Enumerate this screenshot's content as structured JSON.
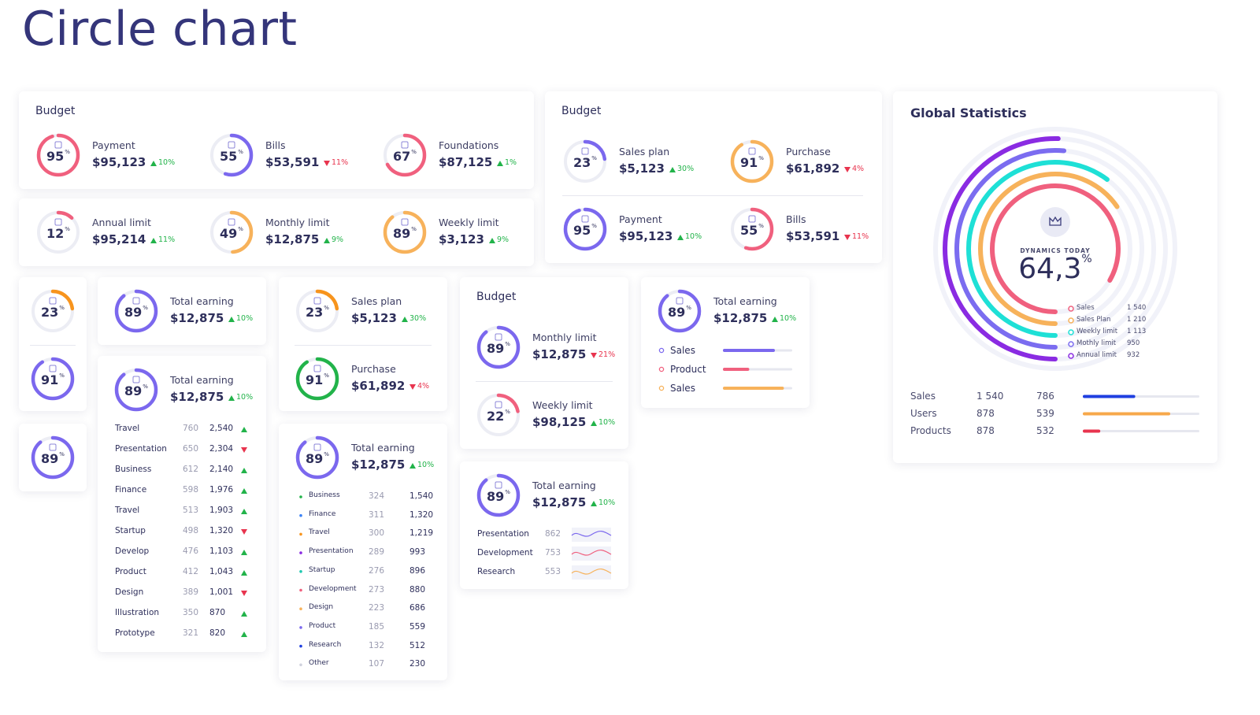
{
  "page_title": "Circle chart",
  "cards": [
    {
      "kind": "row",
      "title": "Budget",
      "items": [
        {
          "label": "Payment",
          "value": 95,
          "unit": "%",
          "amount": "$95,123",
          "change": "10%",
          "trend": "up",
          "color": "#f0607e"
        },
        {
          "label": "Bills",
          "value": 55,
          "unit": "%",
          "amount": "$53,591",
          "change": "11%",
          "trend": "down",
          "color": "#7b68ee"
        },
        {
          "label": "Foundations",
          "value": 67,
          "unit": "%",
          "amount": "$87,125",
          "change": "1%",
          "trend": "up",
          "color": "#f0607e"
        }
      ]
    },
    {
      "kind": "row",
      "items": [
        {
          "label": "Annual limit",
          "value": 12,
          "unit": "%",
          "amount": "$95,214",
          "change": "11%",
          "trend": "up",
          "color": "#f0607e"
        },
        {
          "label": "Monthly limit",
          "value": 49,
          "unit": "%",
          "amount": "$12,875",
          "change": "9%",
          "trend": "up",
          "color": "#f7b25b"
        },
        {
          "label": "Weekly limit",
          "value": 89,
          "unit": "%",
          "amount": "$3,123",
          "change": "9%",
          "trend": "up",
          "color": "#f7b25b"
        }
      ]
    },
    {
      "kind": "grid",
      "title": "Budget",
      "items": [
        {
          "label": "Sales plan",
          "value": 23,
          "unit": "%",
          "amount": "$5,123",
          "change": "30%",
          "trend": "up",
          "color": "#7b68ee"
        },
        {
          "label": "Purchase",
          "value": 91,
          "unit": "%",
          "amount": "$61,892",
          "change": "4%",
          "trend": "down",
          "color": "#f7b25b"
        },
        {
          "label": "Payment",
          "value": 95,
          "unit": "%",
          "amount": "$95,123",
          "change": "10%",
          "trend": "up",
          "color": "#7b68ee"
        },
        {
          "label": "Bills",
          "value": 55,
          "unit": "%",
          "amount": "$53,591",
          "change": "11%",
          "trend": "down",
          "color": "#f0607e"
        }
      ]
    },
    {
      "kind": "global",
      "title": "Global Statistics",
      "dynamics": {
        "title": "DYNAMICS TODAY",
        "value": "64,3",
        "unit": "%"
      },
      "legend": [
        {
          "name": "Sales",
          "value": 1540,
          "label": "1 540",
          "color": "#f0607e"
        },
        {
          "name": "Sales Plan",
          "value": 1210,
          "label": "1 210",
          "color": "#f7b25b"
        },
        {
          "name": "Weekly limit",
          "value": 1113,
          "label": "1 113",
          "color": "#1ee0d6"
        },
        {
          "name": "Mothly limit",
          "value": 950,
          "label": "950",
          "color": "#7b6cf0"
        },
        {
          "name": "Annual limit",
          "value": 932,
          "label": "932",
          "color": "#8a2be2"
        }
      ],
      "table": [
        {
          "name": "Sales",
          "a": "1 540",
          "b": "786",
          "bar": 45,
          "color": "#1f3fe0"
        },
        {
          "name": "Users",
          "a": "878",
          "b": "539",
          "bar": 75,
          "color": "#f7a84b"
        },
        {
          "name": "Products",
          "a": "878",
          "b": "532",
          "bar": 15,
          "color": "#e8344e"
        }
      ]
    },
    {
      "kind": "stack",
      "items": [
        {
          "value": 23,
          "unit": "%",
          "color": "#f7941d"
        },
        {
          "value": 91,
          "unit": "%",
          "color": "#7b68ee"
        }
      ]
    },
    {
      "kind": "stack",
      "items": [
        {
          "value": 89,
          "unit": "%",
          "color": "#7b68ee"
        }
      ]
    },
    {
      "kind": "stack",
      "items": [
        {
          "label": "Total earning",
          "value": 89,
          "unit": "%",
          "amount": "$12,875",
          "change": "10%",
          "trend": "up",
          "color": "#7b68ee"
        }
      ]
    },
    {
      "kind": "stack",
      "items": [
        {
          "label": "Total earning",
          "value": 89,
          "unit": "%",
          "amount": "$12,875",
          "change": "10%",
          "trend": "up",
          "color": "#7b68ee"
        }
      ],
      "rows_kind": "trend",
      "rows": [
        {
          "name": "Travel",
          "num": "760",
          "total": "2,540",
          "trend": "up"
        },
        {
          "name": "Presentation",
          "num": "650",
          "total": "2,304",
          "trend": "down"
        },
        {
          "name": "Business",
          "num": "612",
          "total": "2,140",
          "trend": "up"
        },
        {
          "name": "Finance",
          "num": "598",
          "total": "1,976",
          "trend": "up"
        },
        {
          "name": "Travel",
          "num": "513",
          "total": "1,903",
          "trend": "up"
        },
        {
          "name": "Startup",
          "num": "498",
          "total": "1,320",
          "trend": "down"
        },
        {
          "name": "Develop",
          "num": "476",
          "total": "1,103",
          "trend": "up"
        },
        {
          "name": "Product",
          "num": "412",
          "total": "1,043",
          "trend": "up"
        },
        {
          "name": "Design",
          "num": "389",
          "total": "1,001",
          "trend": "down"
        },
        {
          "name": "Illustration",
          "num": "350",
          "total": "870",
          "trend": "up"
        },
        {
          "name": "Prototype",
          "num": "321",
          "total": "820",
          "trend": "up"
        }
      ]
    },
    {
      "kind": "stack",
      "items": [
        {
          "label": "Sales plan",
          "value": 23,
          "unit": "%",
          "amount": "$5,123",
          "change": "30%",
          "trend": "up",
          "color": "#f7941d"
        },
        {
          "label": "Purchase",
          "value": 91,
          "unit": "%",
          "amount": "$61,892",
          "change": "4%",
          "trend": "down",
          "color": "#22b34a"
        }
      ]
    },
    {
      "kind": "stack",
      "items": [
        {
          "label": "Total earning",
          "value": 89,
          "unit": "%",
          "amount": "$12,875",
          "change": "10%",
          "trend": "up",
          "color": "#7b68ee"
        }
      ],
      "rows_kind": "dots",
      "rows": [
        {
          "name": "Business",
          "num": "324",
          "total": "1,540",
          "color": "#22b34a"
        },
        {
          "name": "Finance",
          "num": "311",
          "total": "1,320",
          "color": "#3b82f6"
        },
        {
          "name": "Travel",
          "num": "300",
          "total": "1,219",
          "color": "#f7941d"
        },
        {
          "name": "Presentation",
          "num": "289",
          "total": "993",
          "color": "#8a2be2"
        },
        {
          "name": "Startup",
          "num": "276",
          "total": "896",
          "color": "#1ec8b0"
        },
        {
          "name": "Development",
          "num": "273",
          "total": "880",
          "color": "#f0607e"
        },
        {
          "name": "Design",
          "num": "223",
          "total": "686",
          "color": "#f7b25b"
        },
        {
          "name": "Product",
          "num": "185",
          "total": "559",
          "color": "#7b68ee"
        },
        {
          "name": "Research",
          "num": "132",
          "total": "512",
          "color": "#1f3fe0"
        },
        {
          "name": "Other",
          "num": "107",
          "total": "230",
          "color": "#d0d2de"
        }
      ]
    },
    {
      "kind": "stack",
      "title": "Budget",
      "items": [
        {
          "label": "Monthly limit",
          "value": 89,
          "unit": "%",
          "amount": "$12,875",
          "change": "21%",
          "trend": "down",
          "color": "#7b68ee"
        },
        {
          "label": "Weekly limit",
          "value": 22,
          "unit": "%",
          "amount": "$98,125",
          "change": "10%",
          "trend": "up",
          "color": "#f0607e"
        }
      ]
    },
    {
      "kind": "stack",
      "items": [
        {
          "label": "Total earning",
          "value": 89,
          "unit": "%",
          "amount": "$12,875",
          "change": "10%",
          "trend": "up",
          "color": "#7b68ee"
        }
      ],
      "rows_kind": "spark",
      "rows": [
        {
          "name": "Presentation",
          "num": "862",
          "color": "#7b68ee"
        },
        {
          "name": "Development",
          "num": "753",
          "color": "#f0607e"
        },
        {
          "name": "Research",
          "num": "553",
          "color": "#f7b25b"
        }
      ]
    },
    {
      "kind": "stack",
      "items": [
        {
          "label": "Total earning",
          "value": 89,
          "unit": "%",
          "amount": "$12,875",
          "change": "10%",
          "trend": "up",
          "color": "#7b68ee"
        }
      ],
      "rows_kind": "bars",
      "rows": [
        {
          "name": "Sales",
          "bar": 75,
          "color": "#7b68ee"
        },
        {
          "name": "Product",
          "bar": 38,
          "color": "#f0607e"
        },
        {
          "name": "Sales",
          "bar": 88,
          "color": "#f7b25b"
        }
      ]
    }
  ]
}
